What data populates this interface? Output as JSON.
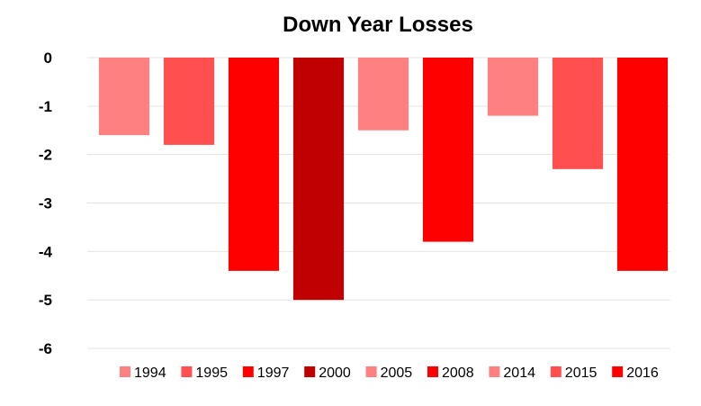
{
  "chart_data": {
    "type": "bar",
    "title": "Down Year Losses",
    "xlabel": "",
    "ylabel": "",
    "ylim": [
      -6,
      0
    ],
    "yticks": [
      0,
      -1,
      -2,
      -3,
      -4,
      -5,
      -6
    ],
    "ytick_labels": [
      "0",
      "-1",
      "-2",
      "-3",
      "-4",
      "-5",
      "-6"
    ],
    "grid": true,
    "legend_position": "bottom",
    "categories": [
      "1994",
      "1995",
      "1997",
      "2000",
      "2005",
      "2008",
      "2014",
      "2015",
      "2016"
    ],
    "values": [
      -1.6,
      -1.8,
      -4.4,
      -5.0,
      -1.5,
      -3.8,
      -1.2,
      -2.3,
      -4.4
    ],
    "colors": [
      "#ff8080",
      "#ff4f4f",
      "#ff0000",
      "#c00000",
      "#ff8080",
      "#ff0000",
      "#ff8080",
      "#ff4f4f",
      "#ff0000"
    ]
  }
}
